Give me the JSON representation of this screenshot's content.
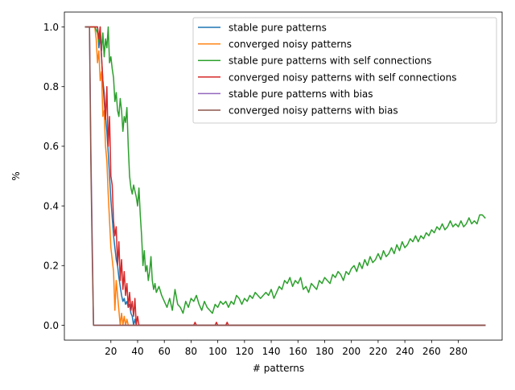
{
  "chart_data": {
    "type": "line",
    "title": "",
    "xlabel": "# patterns",
    "ylabel": "%",
    "xlim": [
      -14.8,
      312.8
    ],
    "ylim": [
      -0.05,
      1.05
    ],
    "x_ticks": [
      20,
      40,
      60,
      80,
      100,
      120,
      140,
      160,
      180,
      200,
      220,
      240,
      260,
      280
    ],
    "x_tick_labels": [
      "20",
      "40",
      "60",
      "80",
      "100",
      "120",
      "140",
      "160",
      "180",
      "200",
      "220",
      "240",
      "260",
      "280"
    ],
    "y_ticks": [
      0.0,
      0.2,
      0.4,
      0.6,
      0.8,
      1.0
    ],
    "y_tick_labels": [
      "0.0",
      "0.2",
      "0.4",
      "0.6",
      "0.8",
      "1.0"
    ],
    "grid": false,
    "legend_position": "upper right",
    "series": [
      {
        "name": "stable pure patterns",
        "color": "#1f77b4",
        "points": [
          [
            1,
            1.0
          ],
          [
            5,
            1.0
          ],
          [
            8,
            1.0
          ],
          [
            10,
            1.0
          ],
          [
            11,
            0.93
          ],
          [
            12,
            0.97
          ],
          [
            13,
            0.9
          ],
          [
            14,
            0.82
          ],
          [
            15,
            0.78
          ],
          [
            16,
            0.7
          ],
          [
            17,
            0.65
          ],
          [
            18,
            0.58
          ],
          [
            19,
            0.5
          ],
          [
            20,
            0.42
          ],
          [
            21,
            0.36
          ],
          [
            22,
            0.3
          ],
          [
            23,
            0.26
          ],
          [
            24,
            0.22
          ],
          [
            25,
            0.2
          ],
          [
            26,
            0.16
          ],
          [
            27,
            0.13
          ],
          [
            28,
            0.1
          ],
          [
            29,
            0.08
          ],
          [
            30,
            0.09
          ],
          [
            31,
            0.07
          ],
          [
            32,
            0.08
          ],
          [
            33,
            0.06
          ],
          [
            34,
            0.07
          ],
          [
            35,
            0.04
          ],
          [
            36,
            0.03
          ],
          [
            37,
            0.0
          ],
          [
            38,
            0.02
          ],
          [
            39,
            0.0
          ],
          [
            40,
            0.0
          ],
          [
            300,
            0.0
          ]
        ]
      },
      {
        "name": "converged noisy patterns",
        "color": "#ff7f0e",
        "points": [
          [
            1,
            1.0
          ],
          [
            5,
            1.0
          ],
          [
            8,
            1.0
          ],
          [
            9,
            0.96
          ],
          [
            10,
            0.88
          ],
          [
            11,
            0.92
          ],
          [
            12,
            0.82
          ],
          [
            13,
            0.85
          ],
          [
            14,
            0.7
          ],
          [
            15,
            0.72
          ],
          [
            16,
            0.6
          ],
          [
            17,
            0.55
          ],
          [
            18,
            0.44
          ],
          [
            19,
            0.35
          ],
          [
            20,
            0.26
          ],
          [
            21,
            0.22
          ],
          [
            22,
            0.18
          ],
          [
            23,
            0.05
          ],
          [
            24,
            0.15
          ],
          [
            25,
            0.1
          ],
          [
            26,
            0.05
          ],
          [
            27,
            0.0
          ],
          [
            28,
            0.04
          ],
          [
            29,
            0.0
          ],
          [
            30,
            0.03
          ],
          [
            31,
            0.0
          ],
          [
            32,
            0.02
          ],
          [
            33,
            0.0
          ],
          [
            300,
            0.0
          ]
        ]
      },
      {
        "name": "stable pure patterns with self connections",
        "color": "#2ca02c",
        "points": [
          [
            1,
            1.0
          ],
          [
            5,
            1.0
          ],
          [
            8,
            1.0
          ],
          [
            10,
            0.98
          ],
          [
            11,
            0.95
          ],
          [
            12,
            1.0
          ],
          [
            13,
            0.92
          ],
          [
            14,
            0.98
          ],
          [
            15,
            0.9
          ],
          [
            16,
            0.96
          ],
          [
            17,
            0.93
          ],
          [
            18,
            1.0
          ],
          [
            19,
            0.88
          ],
          [
            20,
            0.9
          ],
          [
            21,
            0.86
          ],
          [
            22,
            0.83
          ],
          [
            23,
            0.75
          ],
          [
            24,
            0.78
          ],
          [
            25,
            0.72
          ],
          [
            26,
            0.7
          ],
          [
            27,
            0.76
          ],
          [
            28,
            0.72
          ],
          [
            29,
            0.65
          ],
          [
            30,
            0.7
          ],
          [
            31,
            0.68
          ],
          [
            32,
            0.73
          ],
          [
            33,
            0.6
          ],
          [
            34,
            0.5
          ],
          [
            35,
            0.46
          ],
          [
            36,
            0.44
          ],
          [
            37,
            0.47
          ],
          [
            38,
            0.45
          ],
          [
            39,
            0.43
          ],
          [
            40,
            0.4
          ],
          [
            41,
            0.46
          ],
          [
            42,
            0.37
          ],
          [
            43,
            0.3
          ],
          [
            44,
            0.2
          ],
          [
            45,
            0.25
          ],
          [
            46,
            0.18
          ],
          [
            47,
            0.2
          ],
          [
            48,
            0.15
          ],
          [
            49,
            0.18
          ],
          [
            50,
            0.23
          ],
          [
            51,
            0.15
          ],
          [
            52,
            0.12
          ],
          [
            53,
            0.14
          ],
          [
            54,
            0.11
          ],
          [
            56,
            0.13
          ],
          [
            58,
            0.1
          ],
          [
            60,
            0.08
          ],
          [
            62,
            0.06
          ],
          [
            64,
            0.09
          ],
          [
            66,
            0.05
          ],
          [
            68,
            0.12
          ],
          [
            70,
            0.07
          ],
          [
            72,
            0.06
          ],
          [
            74,
            0.04
          ],
          [
            76,
            0.08
          ],
          [
            78,
            0.06
          ],
          [
            80,
            0.09
          ],
          [
            82,
            0.08
          ],
          [
            84,
            0.1
          ],
          [
            86,
            0.07
          ],
          [
            88,
            0.05
          ],
          [
            90,
            0.08
          ],
          [
            92,
            0.06
          ],
          [
            94,
            0.05
          ],
          [
            96,
            0.04
          ],
          [
            98,
            0.07
          ],
          [
            100,
            0.06
          ],
          [
            102,
            0.08
          ],
          [
            104,
            0.07
          ],
          [
            106,
            0.08
          ],
          [
            108,
            0.06
          ],
          [
            110,
            0.08
          ],
          [
            112,
            0.07
          ],
          [
            114,
            0.1
          ],
          [
            116,
            0.09
          ],
          [
            118,
            0.07
          ],
          [
            120,
            0.09
          ],
          [
            122,
            0.08
          ],
          [
            124,
            0.1
          ],
          [
            126,
            0.09
          ],
          [
            128,
            0.11
          ],
          [
            130,
            0.1
          ],
          [
            132,
            0.09
          ],
          [
            134,
            0.1
          ],
          [
            136,
            0.11
          ],
          [
            138,
            0.1
          ],
          [
            140,
            0.12
          ],
          [
            142,
            0.09
          ],
          [
            144,
            0.11
          ],
          [
            146,
            0.13
          ],
          [
            148,
            0.12
          ],
          [
            150,
            0.15
          ],
          [
            152,
            0.14
          ],
          [
            154,
            0.16
          ],
          [
            156,
            0.13
          ],
          [
            158,
            0.15
          ],
          [
            160,
            0.14
          ],
          [
            162,
            0.16
          ],
          [
            164,
            0.12
          ],
          [
            166,
            0.13
          ],
          [
            168,
            0.11
          ],
          [
            170,
            0.14
          ],
          [
            172,
            0.13
          ],
          [
            174,
            0.12
          ],
          [
            176,
            0.15
          ],
          [
            178,
            0.14
          ],
          [
            180,
            0.16
          ],
          [
            182,
            0.15
          ],
          [
            184,
            0.14
          ],
          [
            186,
            0.17
          ],
          [
            188,
            0.16
          ],
          [
            190,
            0.18
          ],
          [
            192,
            0.17
          ],
          [
            194,
            0.15
          ],
          [
            196,
            0.18
          ],
          [
            198,
            0.17
          ],
          [
            200,
            0.19
          ],
          [
            202,
            0.2
          ],
          [
            204,
            0.18
          ],
          [
            206,
            0.21
          ],
          [
            208,
            0.19
          ],
          [
            210,
            0.22
          ],
          [
            212,
            0.2
          ],
          [
            214,
            0.23
          ],
          [
            216,
            0.21
          ],
          [
            218,
            0.22
          ],
          [
            220,
            0.24
          ],
          [
            222,
            0.22
          ],
          [
            224,
            0.25
          ],
          [
            226,
            0.23
          ],
          [
            228,
            0.24
          ],
          [
            230,
            0.26
          ],
          [
            232,
            0.24
          ],
          [
            234,
            0.27
          ],
          [
            236,
            0.25
          ],
          [
            238,
            0.28
          ],
          [
            240,
            0.26
          ],
          [
            242,
            0.27
          ],
          [
            244,
            0.29
          ],
          [
            246,
            0.28
          ],
          [
            248,
            0.3
          ],
          [
            250,
            0.28
          ],
          [
            252,
            0.3
          ],
          [
            254,
            0.29
          ],
          [
            256,
            0.31
          ],
          [
            258,
            0.3
          ],
          [
            260,
            0.32
          ],
          [
            262,
            0.31
          ],
          [
            264,
            0.33
          ],
          [
            266,
            0.32
          ],
          [
            268,
            0.34
          ],
          [
            270,
            0.32
          ],
          [
            272,
            0.33
          ],
          [
            274,
            0.35
          ],
          [
            276,
            0.33
          ],
          [
            278,
            0.34
          ],
          [
            280,
            0.33
          ],
          [
            282,
            0.35
          ],
          [
            284,
            0.33
          ],
          [
            286,
            0.34
          ],
          [
            288,
            0.36
          ],
          [
            290,
            0.34
          ],
          [
            292,
            0.35
          ],
          [
            294,
            0.34
          ],
          [
            296,
            0.37
          ],
          [
            298,
            0.37
          ],
          [
            300,
            0.36
          ]
        ]
      },
      {
        "name": "converged noisy patterns with self connections",
        "color": "#d62728",
        "points": [
          [
            1,
            1.0
          ],
          [
            5,
            1.0
          ],
          [
            8,
            1.0
          ],
          [
            10,
            1.0
          ],
          [
            11,
            0.96
          ],
          [
            12,
            1.0
          ],
          [
            13,
            0.9
          ],
          [
            14,
            0.82
          ],
          [
            15,
            0.75
          ],
          [
            16,
            0.69
          ],
          [
            17,
            0.8
          ],
          [
            18,
            0.6
          ],
          [
            19,
            0.7
          ],
          [
            20,
            0.5
          ],
          [
            21,
            0.47
          ],
          [
            22,
            0.35
          ],
          [
            23,
            0.3
          ],
          [
            24,
            0.33
          ],
          [
            25,
            0.2
          ],
          [
            26,
            0.28
          ],
          [
            27,
            0.15
          ],
          [
            28,
            0.22
          ],
          [
            29,
            0.12
          ],
          [
            30,
            0.18
          ],
          [
            31,
            0.1
          ],
          [
            32,
            0.14
          ],
          [
            33,
            0.06
          ],
          [
            34,
            0.11
          ],
          [
            35,
            0.05
          ],
          [
            36,
            0.08
          ],
          [
            37,
            0.03
          ],
          [
            38,
            0.09
          ],
          [
            39,
            0.0
          ],
          [
            40,
            0.03
          ],
          [
            41,
            0.0
          ],
          [
            82,
            0.0
          ],
          [
            83,
            0.01
          ],
          [
            84,
            0.0
          ],
          [
            98,
            0.0
          ],
          [
            99,
            0.01
          ],
          [
            100,
            0.0
          ],
          [
            106,
            0.0
          ],
          [
            107,
            0.01
          ],
          [
            108,
            0.0
          ],
          [
            300,
            0.0
          ]
        ]
      },
      {
        "name": "stable pure patterns with bias",
        "color": "#9467bd",
        "points": [
          [
            1,
            1.0
          ],
          [
            4,
            1.0
          ],
          [
            5,
            0.6
          ],
          [
            6,
            0.3
          ],
          [
            7,
            0.0
          ],
          [
            300,
            0.0
          ]
        ]
      },
      {
        "name": "converged noisy patterns with bias",
        "color": "#8c564b",
        "points": [
          [
            1,
            1.0
          ],
          [
            4,
            1.0
          ],
          [
            5,
            0.55
          ],
          [
            6,
            0.25
          ],
          [
            7,
            0.0
          ],
          [
            300,
            0.0
          ]
        ]
      }
    ]
  }
}
